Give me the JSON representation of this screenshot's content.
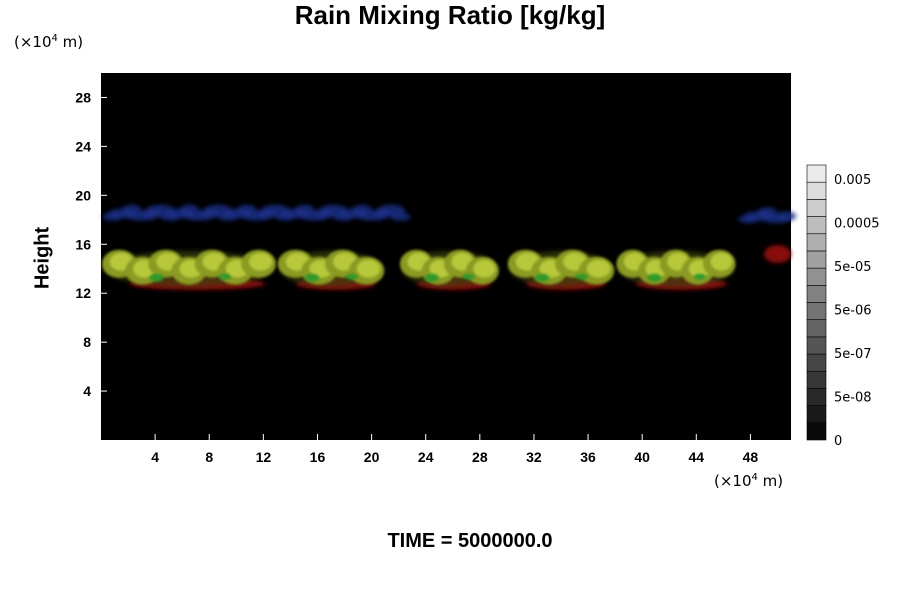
{
  "chart_data": {
    "type": "heatmap",
    "title": "Rain Mixing Ratio [kg/kg]",
    "ylabel": "Height",
    "xlabel": "",
    "axis_unit_prefix": "(×10",
    "axis_unit_exp": "4",
    "axis_unit_suffix": " m)",
    "x_ticks": [
      "4",
      "8",
      "12",
      "16",
      "20",
      "24",
      "28",
      "32",
      "36",
      "40",
      "44",
      "48"
    ],
    "y_ticks": [
      "4",
      "8",
      "12",
      "16",
      "20",
      "24",
      "28"
    ],
    "xlim": [
      0,
      51
    ],
    "ylim": [
      0,
      30
    ],
    "colorbar_labels": [
      "0.005",
      "0.0005",
      "5e-05",
      "5e-06",
      "5e-07",
      "5e-08",
      "0"
    ],
    "colorbar_levels": 16,
    "rain_band": [
      {
        "x0": 0.5,
        "x1": 12.5,
        "y_center": 14.0,
        "color": "yellow-green"
      },
      {
        "x0": 13.5,
        "x1": 20.5,
        "y_center": 14.0,
        "color": "yellow-green"
      },
      {
        "x0": 22.5,
        "x1": 29.0,
        "y_center": 14.0,
        "color": "yellow-green"
      },
      {
        "x0": 30.5,
        "x1": 37.5,
        "y_center": 14.0,
        "color": "yellow-green"
      },
      {
        "x0": 38.5,
        "x1": 46.5,
        "y_center": 14.0,
        "color": "yellow-green"
      },
      {
        "x0": 49.0,
        "x1": 51.0,
        "y_center": 15.2,
        "color": "red"
      }
    ],
    "upper_band": [
      {
        "x0": 0.5,
        "x1": 22.5,
        "y_center": 18.5,
        "color": "blue"
      },
      {
        "x0": 47.5,
        "x1": 51.0,
        "y_center": 18.3,
        "color": "blue"
      }
    ],
    "colors": {
      "background": "#000000",
      "core": "#b8c83a",
      "core_dark": "#8a9a20",
      "green": "#2f9a2a",
      "red": "#8a1010",
      "blue": "#1a2f8a"
    }
  },
  "time_label": "TIME = 5000000.0"
}
